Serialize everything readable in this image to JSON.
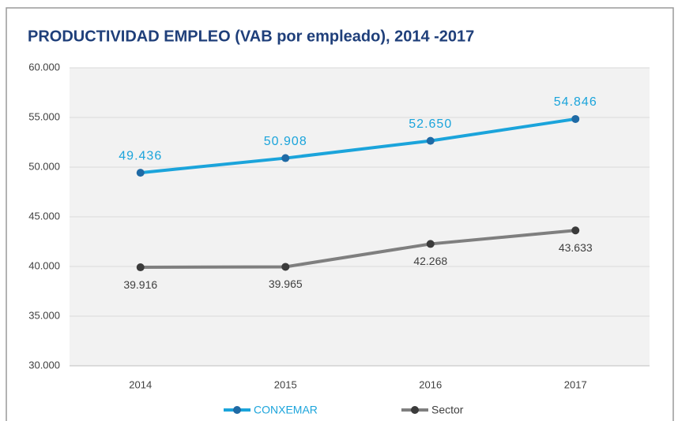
{
  "chart_data": {
    "type": "line",
    "title": "PRODUCTIVIDAD EMPLEO (VAB por empleado), 2014 -2017",
    "categories": [
      "2014",
      "2015",
      "2016",
      "2017"
    ],
    "series": [
      {
        "name": "CONXEMAR",
        "color": "#1ba4db",
        "marker_color": "#1f6aa5",
        "values": [
          49436,
          50908,
          52650,
          54846
        ],
        "value_labels": [
          "49.436",
          "50.908",
          "52.650",
          "54.846"
        ]
      },
      {
        "name": "Sector",
        "color": "#7f7f7f",
        "marker_color": "#3b3b3b",
        "values": [
          39916,
          39965,
          42268,
          43633
        ],
        "value_labels": [
          "39.916",
          "39.965",
          "42.268",
          "43.633"
        ]
      }
    ],
    "ylim": [
      30000,
      60000
    ],
    "yticks": [
      {
        "value": 30000,
        "label": "30.000"
      },
      {
        "value": 35000,
        "label": "35.000"
      },
      {
        "value": 40000,
        "label": "40.000"
      },
      {
        "value": 45000,
        "label": "45.000"
      },
      {
        "value": 50000,
        "label": "50.000"
      },
      {
        "value": 55000,
        "label": "55.000"
      },
      {
        "value": 60000,
        "label": "60.000"
      }
    ],
    "grid": true,
    "legend": "bottom"
  }
}
